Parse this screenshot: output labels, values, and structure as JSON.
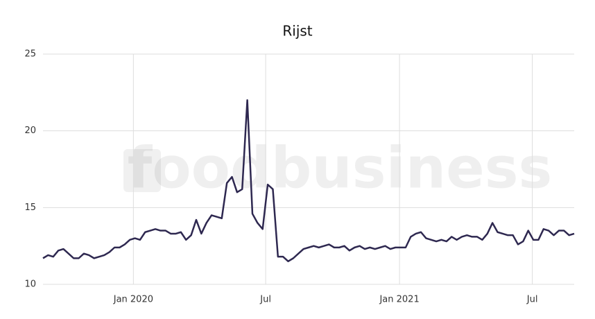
{
  "chart_data": {
    "type": "line",
    "title": "Rijst",
    "watermark": "foodbusiness",
    "x": [
      0,
      1,
      2,
      3,
      4,
      5,
      6,
      7,
      8,
      9,
      10,
      11,
      12,
      13,
      14,
      15,
      16,
      17,
      18,
      19,
      20,
      21,
      22,
      23,
      24,
      25,
      26,
      27,
      28,
      29,
      30,
      31,
      32,
      33,
      34,
      35,
      36,
      37,
      38,
      39,
      40,
      41,
      42,
      43,
      44,
      45,
      46,
      47,
      48,
      49,
      50,
      51,
      52,
      53,
      54,
      55,
      56,
      57,
      58,
      59,
      60,
      61,
      62,
      63,
      64,
      65,
      66,
      67,
      68,
      69,
      70,
      71,
      72,
      73,
      74,
      75,
      76,
      77,
      78,
      79,
      80,
      81,
      82,
      83,
      84,
      85,
      86,
      87,
      88,
      89,
      90,
      91,
      92,
      93,
      94,
      95,
      96,
      97,
      98,
      99,
      100,
      101,
      102,
      103,
      104
    ],
    "series": [
      {
        "name": "Rijst",
        "color": "#2e2850",
        "values": [
          11.7,
          11.9,
          11.8,
          12.2,
          12.3,
          12.0,
          11.7,
          11.7,
          12.0,
          11.9,
          11.7,
          11.8,
          11.9,
          12.1,
          12.4,
          12.4,
          12.6,
          12.9,
          13.0,
          12.9,
          13.4,
          13.5,
          13.6,
          13.5,
          13.5,
          13.3,
          13.3,
          13.4,
          12.9,
          13.2,
          14.2,
          13.3,
          14.0,
          14.5,
          14.4,
          14.3,
          16.6,
          17.0,
          16.0,
          16.2,
          22.0,
          14.6,
          14.0,
          13.6,
          16.5,
          16.2,
          11.8,
          11.8,
          11.5,
          11.7,
          12.0,
          12.3,
          12.4,
          12.5,
          12.4,
          12.5,
          12.6,
          12.4,
          12.4,
          12.5,
          12.2,
          12.4,
          12.5,
          12.3,
          12.4,
          12.3,
          12.4,
          12.5,
          12.3,
          12.4,
          12.4,
          12.4,
          13.1,
          13.3,
          13.4,
          13.0,
          12.9,
          12.8,
          12.9,
          12.8,
          13.1,
          12.9,
          13.1,
          13.2,
          13.1,
          13.1,
          12.9,
          13.3,
          14.0,
          13.4,
          13.3,
          13.2,
          13.2,
          12.6,
          12.8,
          13.5,
          12.9,
          12.9,
          13.6,
          13.5,
          13.2,
          13.5,
          13.5,
          13.2,
          13.3
        ]
      }
    ],
    "xlim": [
      0,
      104
    ],
    "xticks": [
      {
        "value": 17.7,
        "label": "Jan 2020"
      },
      {
        "value": 43.6,
        "label": "Jul"
      },
      {
        "value": 69.8,
        "label": "Jan 2021"
      },
      {
        "value": 95.8,
        "label": "Jul"
      }
    ],
    "ylim": [
      10,
      25
    ],
    "yticks": [
      10,
      15,
      20,
      25
    ],
    "grid": true
  }
}
